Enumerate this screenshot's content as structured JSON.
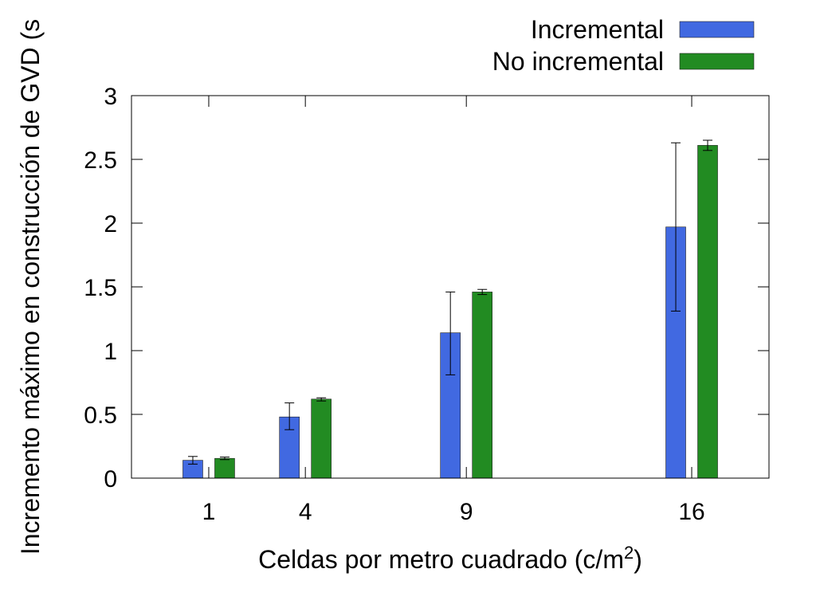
{
  "chart_data": {
    "type": "bar",
    "categories": [
      "1",
      "4",
      "9",
      "16"
    ],
    "x": [
      1,
      4,
      9,
      16
    ],
    "series": [
      {
        "name": "Incremental",
        "color": "#4169e1",
        "values": [
          0.14,
          0.48,
          1.14,
          1.97
        ],
        "error_low": [
          0.11,
          0.38,
          0.81,
          1.31
        ],
        "error_high": [
          0.17,
          0.59,
          1.46,
          2.63
        ]
      },
      {
        "name": "No incremental",
        "color": "#228b22",
        "values": [
          0.155,
          0.62,
          1.46,
          2.61
        ],
        "error_low": [
          0.145,
          0.605,
          1.44,
          2.57
        ],
        "error_high": [
          0.165,
          0.63,
          1.48,
          2.65
        ]
      }
    ],
    "xlabel": "Celdas por metro cuadrado (c/m",
    "xlabel_superscript": "2",
    "xlabel_suffix": ")",
    "ylabel": "Incremento máximo en construcción de GVD (s",
    "ylim": [
      0,
      3
    ],
    "yticks": [
      0,
      0.5,
      1,
      1.5,
      2,
      2.5,
      3
    ],
    "ytick_labels": [
      "0",
      "0.5",
      "1",
      "1.5",
      "2",
      "2.5",
      "3"
    ],
    "xlim": [
      -1.4,
      18.4
    ],
    "legend_position": "top-right, outside plot",
    "grid": false
  }
}
